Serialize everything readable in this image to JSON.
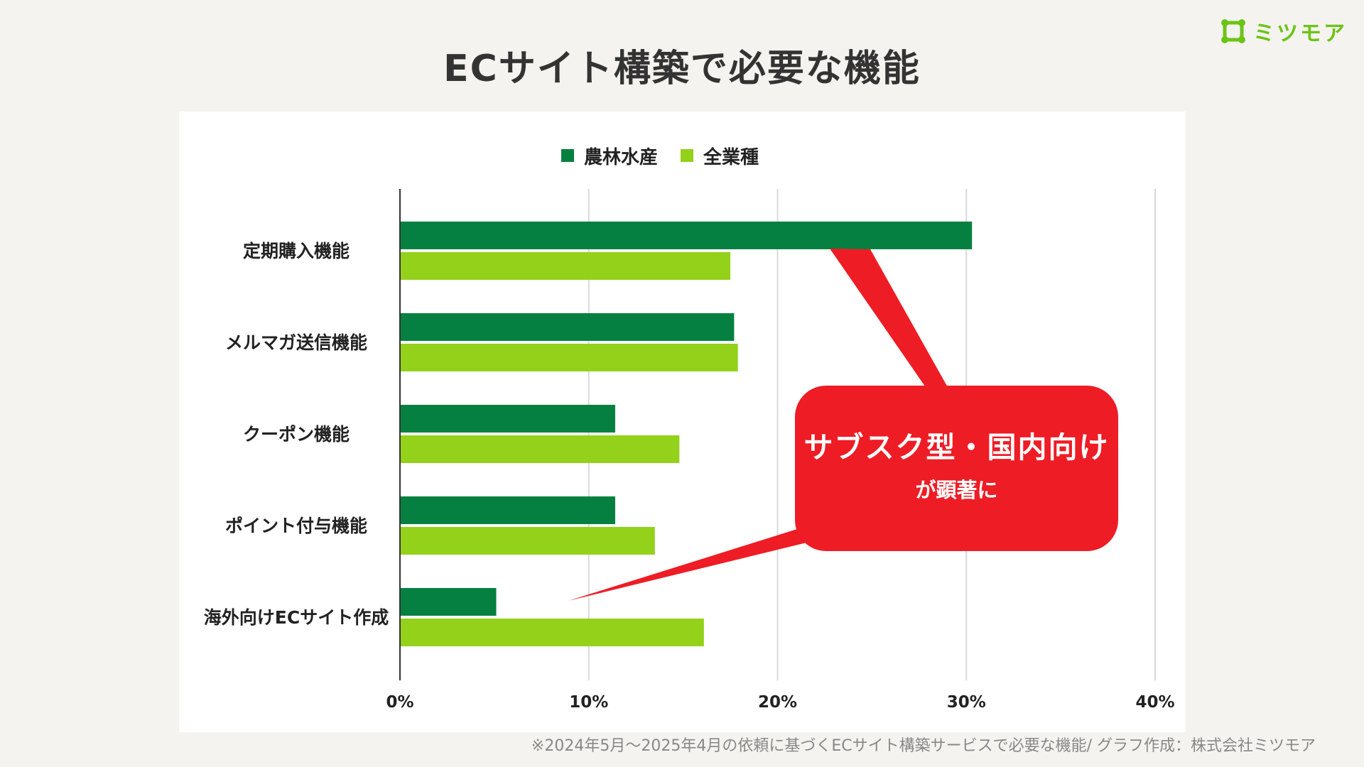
{
  "brand": {
    "name": "ミツモア",
    "color": "#6cc417",
    "icon": "mitsumore-logo-icon"
  },
  "title": "ECサイト構築で必要な機能",
  "chart_data": {
    "type": "bar",
    "orientation": "horizontal",
    "categories": [
      "定期購入機能",
      "メルマガ送信機能",
      "クーポン機能",
      "ポイント付与機能",
      "海外向けECサイト作成"
    ],
    "series": [
      {
        "name": "農林水産",
        "color": "#058040",
        "values": [
          30.3,
          17.7,
          11.4,
          11.4,
          5.1
        ]
      },
      {
        "name": "全業種",
        "color": "#93d11a",
        "values": [
          17.5,
          17.9,
          14.8,
          13.5,
          16.1
        ]
      }
    ],
    "xlim": [
      0,
      40
    ],
    "xticks": [
      0,
      10,
      20,
      30,
      40
    ],
    "xtick_labels": [
      "0%",
      "10%",
      "20%",
      "30%",
      "40%"
    ],
    "grid": true,
    "legend_position": "top-center"
  },
  "callout": {
    "main": "サブスク型・国内向け",
    "sub": "が顕著に",
    "color": "#ee1c25"
  },
  "footnote": "※2024年5月〜2025年4月の依頼に基づくECサイト構築サービスで必要な機能/ グラフ作成：株式会社ミツモア"
}
